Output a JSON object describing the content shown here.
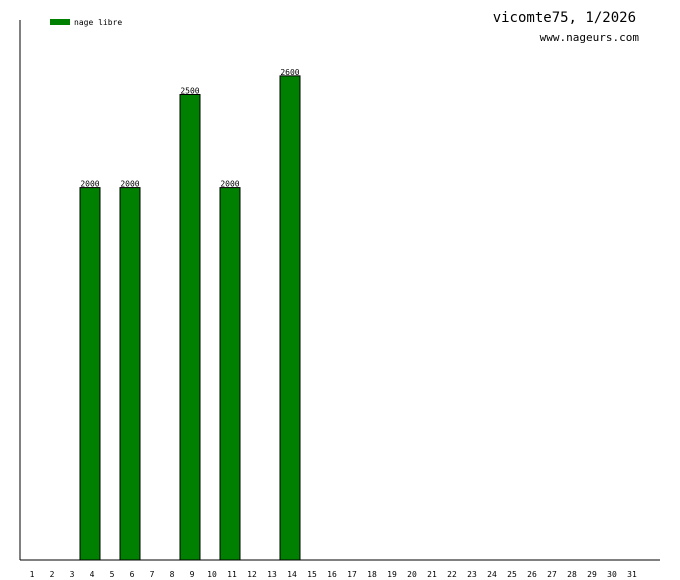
{
  "chart_data": {
    "type": "bar",
    "title": "vicomte75, 1/2026",
    "subtitle": "www.nageurs.com",
    "categories": [
      "1",
      "2",
      "3",
      "4",
      "5",
      "6",
      "7",
      "8",
      "9",
      "10",
      "11",
      "12",
      "13",
      "14",
      "15",
      "16",
      "17",
      "18",
      "19",
      "20",
      "21",
      "22",
      "23",
      "24",
      "25",
      "26",
      "27",
      "28",
      "29",
      "30",
      "31"
    ],
    "series": [
      {
        "name": "nage libre",
        "color": "#008000",
        "values": [
          null,
          null,
          null,
          2000,
          null,
          2000,
          null,
          null,
          2500,
          null,
          2000,
          null,
          null,
          2600,
          null,
          null,
          null,
          null,
          null,
          null,
          null,
          null,
          null,
          null,
          null,
          null,
          null,
          null,
          null,
          null,
          null
        ]
      }
    ],
    "ylim": [
      0,
      2900
    ]
  }
}
